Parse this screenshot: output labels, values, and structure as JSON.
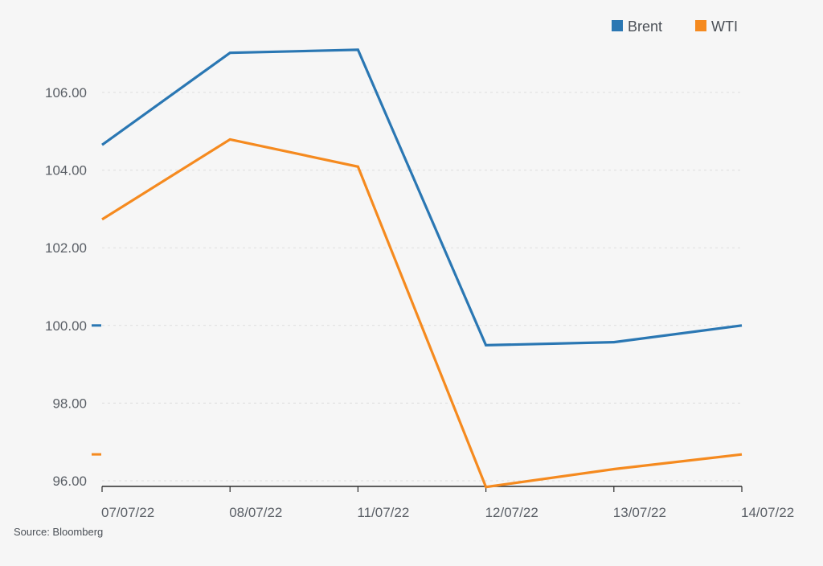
{
  "chart_data": {
    "type": "line",
    "x": [
      "07/07/22",
      "08/07/22",
      "11/07/22",
      "12/07/22",
      "13/07/22",
      "14/07/22"
    ],
    "series": [
      {
        "name": "Brent",
        "color": "#2a77b3",
        "values": [
          104.65,
          107.02,
          107.1,
          99.49,
          99.57,
          100.0
        ]
      },
      {
        "name": "WTI",
        "color": "#f58a1f",
        "values": [
          102.73,
          104.79,
          104.09,
          95.84,
          96.3,
          96.68
        ]
      }
    ],
    "yticks": [
      "96.00",
      "98.00",
      "100.00",
      "102.00",
      "104.00",
      "106.00"
    ],
    "ylim": [
      95.84,
      108.0
    ],
    "grid": true,
    "legend_position": "top-right",
    "source": "Source: Bloomberg"
  }
}
